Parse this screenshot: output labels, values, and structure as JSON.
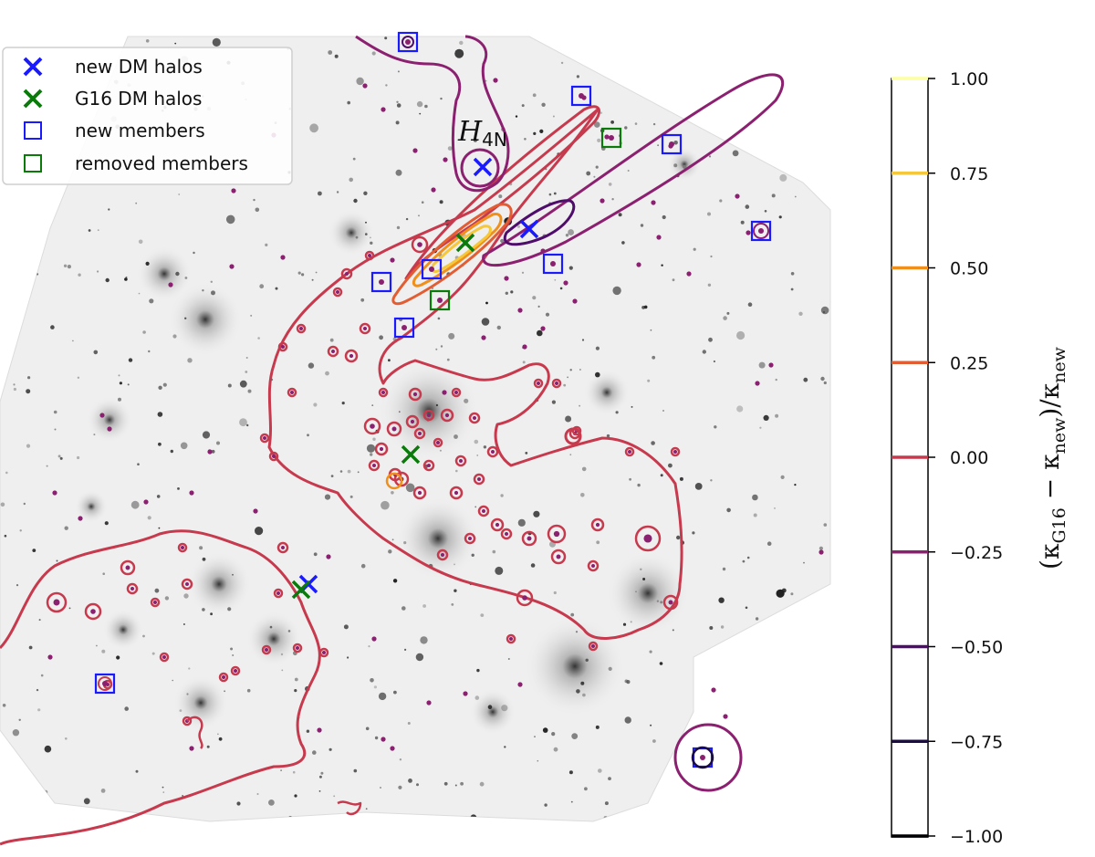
{
  "legend": {
    "items": [
      {
        "label": "new DM halos",
        "marker": "x",
        "color": "#1a1aff"
      },
      {
        "label": "G16 DM halos",
        "marker": "x",
        "color": "#0a7a0a"
      },
      {
        "label": "new members",
        "marker": "square",
        "color": "#1a1aff"
      },
      {
        "label": "removed members",
        "marker": "square",
        "color": "#0a7a0a"
      }
    ]
  },
  "annotation": {
    "halo_main": "H",
    "halo_sub": "4N"
  },
  "colorbar": {
    "label_prefix": "(κ",
    "label_sub1": "G16",
    "label_mid": " − κ",
    "label_sub2": "new",
    "label_suffix": ")/κ",
    "label_sub3": "new",
    "ticks": [
      {
        "value": 1.0,
        "label": "1.00",
        "color": "#fcffa4"
      },
      {
        "value": 0.75,
        "label": "0.75",
        "color": "#f5c73a"
      },
      {
        "value": 0.5,
        "label": "0.50",
        "color": "#f0901a"
      },
      {
        "value": 0.25,
        "label": "0.25",
        "color": "#e35d33"
      },
      {
        "value": 0.0,
        "label": "0.00",
        "color": "#c73a4d"
      },
      {
        "value": -0.25,
        "label": "−0.25",
        "color": "#8c2070"
      },
      {
        "value": -0.5,
        "label": "−0.50",
        "color": "#4e0c6b"
      },
      {
        "value": -0.75,
        "label": "−0.75",
        "color": "#1b0c41"
      },
      {
        "value": -1.0,
        "label": "−1.00",
        "color": "#000004"
      }
    ]
  },
  "colors": {
    "contour_zero": "#c73a4d",
    "contour_neg025": "#8c2070",
    "contour_neg050": "#4e0c6b",
    "contour_pos050": "#f0901a",
    "contour_pos075": "#f5c73a",
    "contour_pos025": "#e35d33",
    "new_halo": "#1a1aff",
    "g16_halo": "#0a7a0a"
  }
}
